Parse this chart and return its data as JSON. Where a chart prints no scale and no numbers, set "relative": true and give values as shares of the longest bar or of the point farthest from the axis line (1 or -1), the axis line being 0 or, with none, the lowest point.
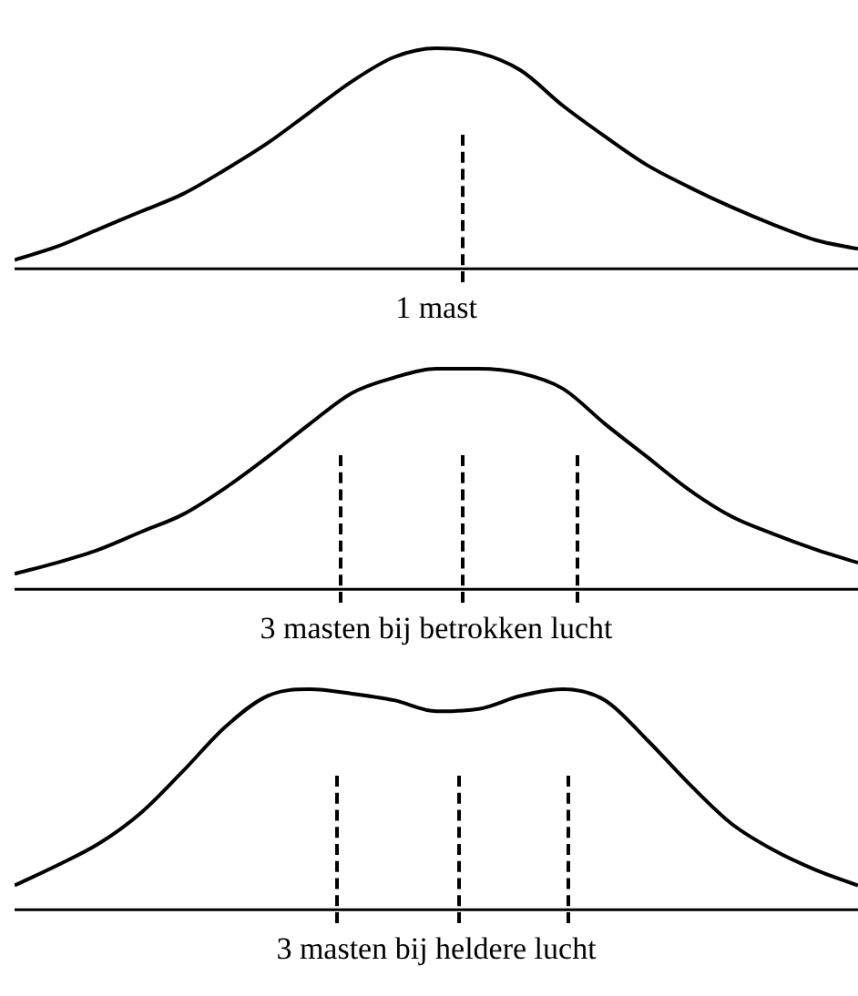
{
  "chart_data": [
    {
      "type": "line",
      "title": "1 mast",
      "relative": true,
      "color": "#000000",
      "categories": [
        null,
        null,
        null,
        null,
        null,
        null,
        null,
        null,
        null,
        null,
        null,
        null,
        null,
        null,
        null,
        null,
        null,
        null,
        null,
        null,
        null
      ],
      "values": [
        0.04,
        0.1,
        0.18,
        0.26,
        0.34,
        0.45,
        0.57,
        0.71,
        0.85,
        0.96,
        1.0,
        0.98,
        0.9,
        0.74,
        0.6,
        0.47,
        0.37,
        0.28,
        0.2,
        0.13,
        0.09
      ]
    },
    {
      "type": "line",
      "title": "3 masten bij betrokken lucht",
      "relative": true,
      "color": "#000000",
      "categories": [
        null,
        null,
        null,
        null,
        null,
        null,
        null,
        null,
        null,
        null,
        null,
        null,
        null,
        null,
        null,
        null,
        null,
        null,
        null,
        null,
        null
      ],
      "values": [
        0.07,
        0.12,
        0.18,
        0.26,
        0.34,
        0.46,
        0.6,
        0.75,
        0.89,
        0.96,
        1.0,
        1.0,
        0.98,
        0.91,
        0.75,
        0.6,
        0.45,
        0.33,
        0.25,
        0.18,
        0.12
      ]
    },
    {
      "type": "line",
      "title": "3 masten bij heldere lucht",
      "relative": true,
      "color": "#000000",
      "categories": [
        null,
        null,
        null,
        null,
        null,
        null,
        null,
        null,
        null,
        null,
        null,
        null,
        null,
        null,
        null,
        null,
        null,
        null,
        null,
        null,
        null
      ],
      "values": [
        0.11,
        0.2,
        0.3,
        0.44,
        0.63,
        0.83,
        0.97,
        1.0,
        0.98,
        0.95,
        0.9,
        0.91,
        0.97,
        1.0,
        0.95,
        0.77,
        0.57,
        0.39,
        0.27,
        0.18,
        0.11
      ]
    }
  ]
}
